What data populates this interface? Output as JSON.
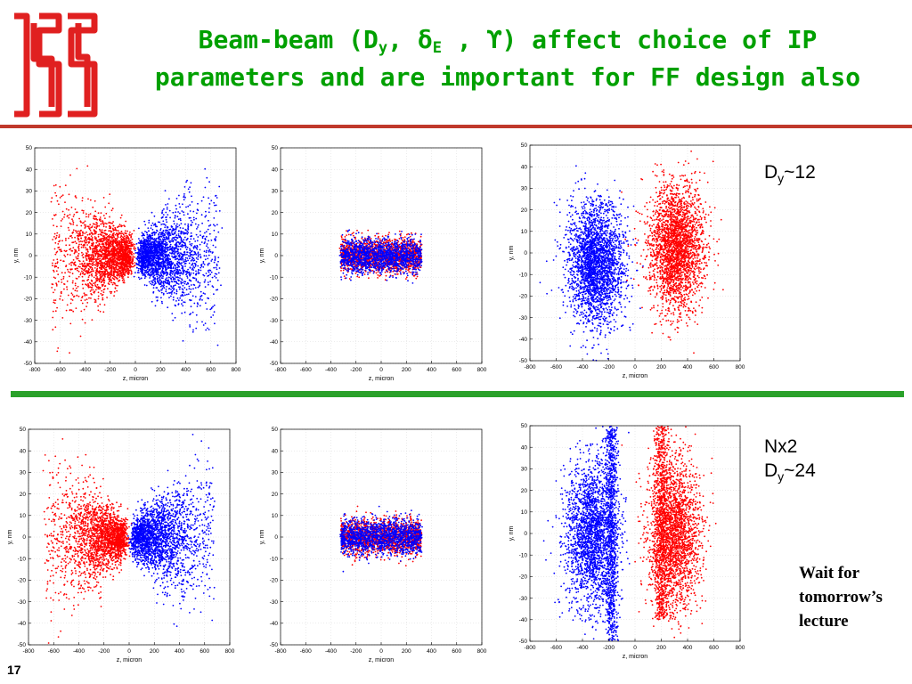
{
  "slide": {
    "title_part1": "Beam-beam (D",
    "title_sub_y": "y",
    "title_part2": ", δ",
    "title_sub_e": "E",
    "title_part3": " , ϒ) affect choice of IP",
    "title_line2": "parameters and are important for FF design also",
    "note_top_main": "D",
    "note_top_sub": "y",
    "note_top_value": "~12",
    "note_bottom_line1": "Nx2",
    "note_bottom_main": "D",
    "note_bottom_sub": "y",
    "note_bottom_value": "~24",
    "wait_text": "Wait for tomorrow’s lecture",
    "slide_number": "17",
    "colors": {
      "title": "#00a000",
      "top_rule": "#c0392b",
      "mid_rule": "#2aa12a",
      "logo": "#e02020"
    }
  },
  "chart_data": [
    {
      "id": "top-left",
      "type": "scatter",
      "xlabel": "z, micron",
      "ylabel": "y, nm",
      "xlim": [
        -800,
        800
      ],
      "ylim": [
        -50,
        50
      ],
      "xticks": [
        -800,
        -600,
        -400,
        -200,
        0,
        200,
        400,
        600,
        800
      ],
      "yticks": [
        -50,
        -40,
        -30,
        -20,
        -10,
        0,
        10,
        20,
        30,
        40,
        50
      ],
      "grid": true,
      "series": [
        {
          "color": "#ff0000",
          "shape": "cone-left",
          "center_x": -300,
          "center_y": 0,
          "half_width_x": 320,
          "half_height_y": 42,
          "points": 2200
        },
        {
          "color": "#0000ff",
          "shape": "cone-right",
          "center_x": 300,
          "center_y": 0,
          "half_width_x": 320,
          "half_height_y": 42,
          "points": 2200
        }
      ]
    },
    {
      "id": "top-middle",
      "type": "scatter",
      "xlabel": "z, micron",
      "ylabel": "y, nm",
      "xlim": [
        -800,
        800
      ],
      "ylim": [
        -50,
        50
      ],
      "xticks": [
        -800,
        -600,
        -400,
        -200,
        0,
        200,
        400,
        600,
        800
      ],
      "yticks": [
        -50,
        -40,
        -30,
        -20,
        -10,
        0,
        10,
        20,
        30,
        40,
        50
      ],
      "grid": true,
      "series": [
        {
          "color": "#ff0000",
          "shape": "flat",
          "center_x": 0,
          "center_y": 0,
          "half_width_x": 320,
          "half_height_y": 9,
          "points": 1500
        },
        {
          "color": "#0000ff",
          "shape": "flat",
          "center_x": 0,
          "center_y": 0,
          "half_width_x": 320,
          "half_height_y": 9,
          "points": 1500
        }
      ]
    },
    {
      "id": "top-right",
      "type": "scatter",
      "xlabel": "z, micron",
      "ylabel": "y, nm",
      "xlim": [
        -800,
        800
      ],
      "ylim": [
        -50,
        50
      ],
      "xticks": [
        -800,
        -600,
        -400,
        -200,
        0,
        200,
        400,
        600,
        800
      ],
      "yticks": [
        -50,
        -40,
        -30,
        -20,
        -10,
        0,
        10,
        20,
        30,
        40,
        50
      ],
      "grid": true,
      "series": [
        {
          "color": "#0000ff",
          "shape": "blob",
          "center_x": -300,
          "center_y": -5,
          "half_width_x": 300,
          "half_height_y": 36,
          "points": 2600
        },
        {
          "color": "#ff0000",
          "shape": "blob",
          "center_x": 310,
          "center_y": 2,
          "half_width_x": 300,
          "half_height_y": 38,
          "points": 2600
        }
      ]
    },
    {
      "id": "bottom-left",
      "type": "scatter",
      "xlabel": "z, micron",
      "ylabel": "y, nm",
      "xlim": [
        -800,
        800
      ],
      "ylim": [
        -50,
        50
      ],
      "xticks": [
        -800,
        -600,
        -400,
        -200,
        0,
        200,
        400,
        600,
        800
      ],
      "yticks": [
        -50,
        -40,
        -30,
        -20,
        -10,
        0,
        10,
        20,
        30,
        40,
        50
      ],
      "grid": true,
      "series": [
        {
          "color": "#ff0000",
          "shape": "cone-left",
          "center_x": -300,
          "center_y": 0,
          "half_width_x": 320,
          "half_height_y": 44,
          "points": 2200
        },
        {
          "color": "#0000ff",
          "shape": "cone-right",
          "center_x": 300,
          "center_y": 0,
          "half_width_x": 320,
          "half_height_y": 44,
          "points": 2200
        }
      ]
    },
    {
      "id": "bottom-middle",
      "type": "scatter",
      "xlabel": "z, micron",
      "ylabel": "y, nm",
      "xlim": [
        -800,
        800
      ],
      "ylim": [
        -50,
        50
      ],
      "xticks": [
        -800,
        -600,
        -400,
        -200,
        0,
        200,
        400,
        600,
        800
      ],
      "yticks": [
        -50,
        -40,
        -30,
        -20,
        -10,
        0,
        10,
        20,
        30,
        40,
        50
      ],
      "grid": true,
      "series": [
        {
          "color": "#ff0000",
          "shape": "flat",
          "center_x": 0,
          "center_y": 0,
          "half_width_x": 320,
          "half_height_y": 9,
          "points": 1500
        },
        {
          "color": "#0000ff",
          "shape": "flat",
          "center_x": 0,
          "center_y": 0,
          "half_width_x": 320,
          "half_height_y": 9,
          "points": 1500
        }
      ]
    },
    {
      "id": "bottom-right",
      "type": "scatter",
      "xlabel": "z, micron",
      "ylabel": "y, nm",
      "xlim": [
        -800,
        800
      ],
      "ylim": [
        -50,
        50
      ],
      "xticks": [
        -800,
        -600,
        -400,
        -200,
        0,
        200,
        400,
        600,
        800
      ],
      "yticks": [
        -50,
        -40,
        -30,
        -20,
        -10,
        0,
        10,
        20,
        30,
        40,
        50
      ],
      "grid": true,
      "series": [
        {
          "color": "#0000ff",
          "shape": "blob",
          "center_x": -330,
          "center_y": 0,
          "half_width_x": 280,
          "half_height_y": 46,
          "points": 2200
        },
        {
          "color": "#0000ff",
          "shape": "stripe",
          "center_x": -180,
          "center_y": 0,
          "half_width_x": 70,
          "half_height_y": 50,
          "points": 900
        },
        {
          "color": "#ff0000",
          "shape": "stripe",
          "center_x": 200,
          "center_y": 10,
          "half_width_x": 80,
          "half_height_y": 50,
          "points": 900
        },
        {
          "color": "#ff0000",
          "shape": "blob",
          "center_x": 300,
          "center_y": 0,
          "half_width_x": 280,
          "half_height_y": 46,
          "points": 2200
        }
      ]
    }
  ]
}
